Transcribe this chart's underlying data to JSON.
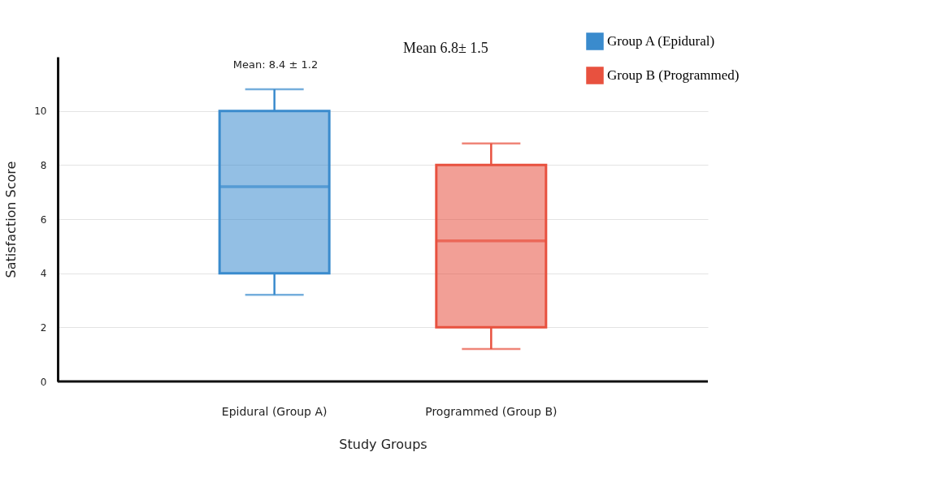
{
  "chart_data": {
    "type": "box",
    "xlabel": "Study Groups",
    "ylabel": "Satisfaction Score",
    "categories": [
      "Epidural (Group A)",
      "Programmed (Group B)"
    ],
    "series": [
      {
        "name": "Group A (Epidural)",
        "color": "#3a8bcd",
        "boxes": [
          {
            "low": 3.2,
            "q1": 4,
            "median": 7.2,
            "q3": 10,
            "high": 10.8
          },
          null
        ]
      },
      {
        "name": "Group B (Programmed)",
        "color": "#e8513f",
        "boxes": [
          null,
          {
            "low": 1.2,
            "q1": 2,
            "median": 5.2,
            "q3": 8,
            "high": 8.8
          }
        ]
      }
    ],
    "ylim": [
      0,
      12
    ],
    "yticks": [
      0,
      2,
      4,
      6,
      8,
      10
    ],
    "grid": "y",
    "legend": "top right",
    "annotations": [
      "Mean: 8.4 ± 1.2",
      "Mean 6.8± 1.5"
    ]
  }
}
